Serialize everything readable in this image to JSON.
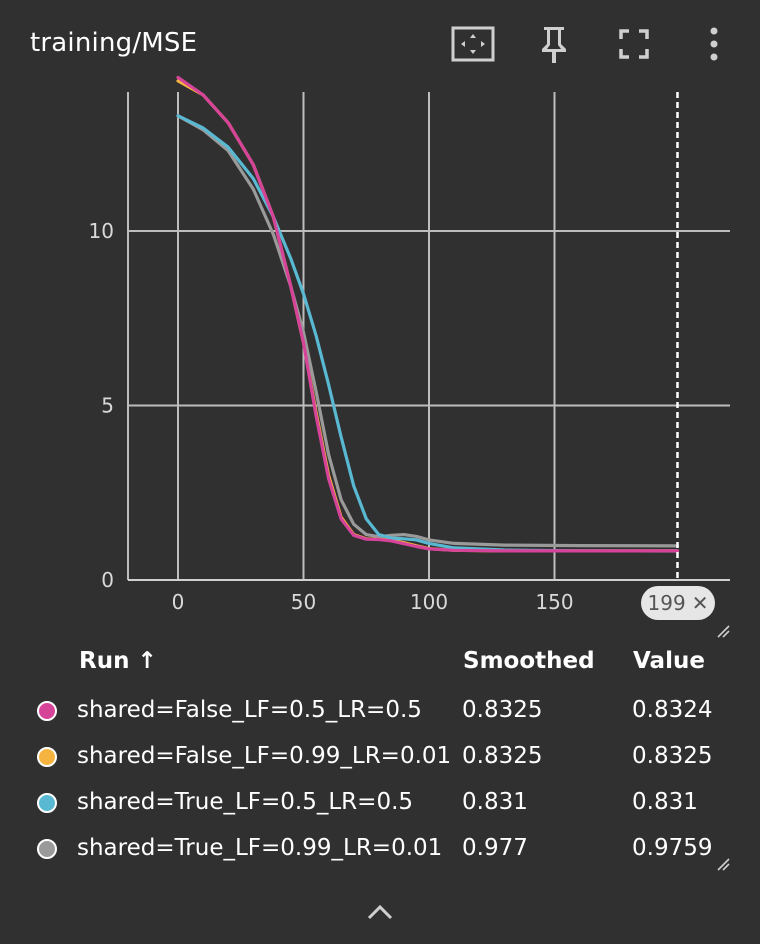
{
  "card": {
    "title": "training/MSE"
  },
  "toolbar": {
    "icons": [
      "fit-domain-icon",
      "pin-icon",
      "fullscreen-icon",
      "more-vert-icon"
    ]
  },
  "step_chip": {
    "step": "199",
    "close_symbol": "✕"
  },
  "table": {
    "headers": {
      "run": "Run ↑",
      "smoothed": "Smoothed",
      "value": "Value"
    },
    "rows": [
      {
        "run": "shared=False_LF=0.5_LR=0.5",
        "smoothed": "0.8325",
        "value": "0.8324",
        "color": "#d6449a"
      },
      {
        "run": "shared=False_LF=0.99_LR=0.01",
        "smoothed": "0.8325",
        "value": "0.8325",
        "color": "#f5b43f"
      },
      {
        "run": "shared=True_LF=0.5_LR=0.5",
        "smoothed": "0.831",
        "value": "0.831",
        "color": "#5ab9d2"
      },
      {
        "run": "shared=True_LF=0.99_LR=0.01",
        "smoothed": "0.977",
        "value": "0.9759",
        "color": "#9a9a9a"
      }
    ]
  },
  "chart_data": {
    "type": "line",
    "title": "training/MSE",
    "xlabel": "",
    "ylabel": "",
    "xlim": [
      -20,
      220
    ],
    "ylim": [
      0,
      14
    ],
    "x_ticks": [
      0,
      50,
      100,
      150
    ],
    "y_ticks": [
      0,
      5,
      10
    ],
    "grid": true,
    "hover_step": 199,
    "series": [
      {
        "name": "shared=False_LF=0.99_LR=0.01",
        "color": "#f5b43f",
        "points": [
          [
            0,
            14.3
          ],
          [
            10,
            13.9
          ],
          [
            20,
            13.1
          ],
          [
            30,
            11.9
          ],
          [
            38,
            10.4
          ],
          [
            45,
            8.4
          ],
          [
            50,
            6.8
          ],
          [
            55,
            4.8
          ],
          [
            60,
            3.0
          ],
          [
            65,
            1.8
          ],
          [
            70,
            1.3
          ],
          [
            75,
            1.18
          ],
          [
            80,
            1.17
          ],
          [
            85,
            1.14
          ],
          [
            90,
            1.07
          ],
          [
            95,
            0.98
          ],
          [
            100,
            0.9
          ],
          [
            110,
            0.85
          ],
          [
            130,
            0.835
          ],
          [
            160,
            0.833
          ],
          [
            199,
            0.8325
          ]
        ]
      },
      {
        "name": "shared=True_LF=0.99_LR=0.01",
        "color": "#9a9a9a",
        "points": [
          [
            0,
            13.3
          ],
          [
            10,
            12.9
          ],
          [
            20,
            12.3
          ],
          [
            30,
            11.2
          ],
          [
            38,
            9.9
          ],
          [
            45,
            8.4
          ],
          [
            50,
            7.1
          ],
          [
            55,
            5.4
          ],
          [
            60,
            3.6
          ],
          [
            65,
            2.3
          ],
          [
            70,
            1.6
          ],
          [
            75,
            1.3
          ],
          [
            80,
            1.24
          ],
          [
            85,
            1.28
          ],
          [
            90,
            1.3
          ],
          [
            95,
            1.25
          ],
          [
            100,
            1.15
          ],
          [
            110,
            1.05
          ],
          [
            130,
            1.0
          ],
          [
            160,
            0.985
          ],
          [
            199,
            0.977
          ]
        ]
      },
      {
        "name": "shared=True_LF=0.5_LR=0.5",
        "color": "#5ab9d2",
        "points": [
          [
            0,
            13.3
          ],
          [
            10,
            12.95
          ],
          [
            20,
            12.4
          ],
          [
            30,
            11.5
          ],
          [
            38,
            10.4
          ],
          [
            45,
            9.2
          ],
          [
            50,
            8.2
          ],
          [
            55,
            7.0
          ],
          [
            60,
            5.6
          ],
          [
            65,
            4.1
          ],
          [
            70,
            2.7
          ],
          [
            75,
            1.75
          ],
          [
            80,
            1.3
          ],
          [
            85,
            1.2
          ],
          [
            90,
            1.18
          ],
          [
            95,
            1.15
          ],
          [
            100,
            1.05
          ],
          [
            110,
            0.92
          ],
          [
            130,
            0.86
          ],
          [
            160,
            0.835
          ],
          [
            199,
            0.831
          ]
        ]
      },
      {
        "name": "shared=False_LF=0.5_LR=0.5",
        "color": "#d6449a",
        "points": [
          [
            0,
            14.4
          ],
          [
            10,
            13.9
          ],
          [
            20,
            13.1
          ],
          [
            30,
            11.9
          ],
          [
            38,
            10.4
          ],
          [
            45,
            8.4
          ],
          [
            50,
            6.8
          ],
          [
            55,
            4.7
          ],
          [
            60,
            2.9
          ],
          [
            65,
            1.75
          ],
          [
            70,
            1.28
          ],
          [
            75,
            1.17
          ],
          [
            80,
            1.16
          ],
          [
            85,
            1.12
          ],
          [
            90,
            1.04
          ],
          [
            95,
            0.96
          ],
          [
            100,
            0.89
          ],
          [
            110,
            0.85
          ],
          [
            130,
            0.835
          ],
          [
            160,
            0.833
          ],
          [
            199,
            0.8324
          ]
        ]
      }
    ]
  }
}
